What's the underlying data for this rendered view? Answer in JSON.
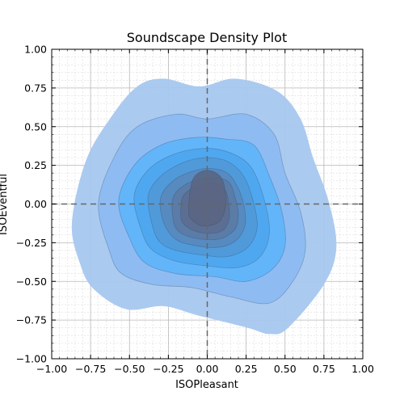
{
  "chart_data": {
    "type": "contour",
    "title": "Soundscape Density Plot",
    "xlabel": "ISOPleasant",
    "ylabel": "ISOEventful",
    "xlim": [
      -1,
      1
    ],
    "ylim": [
      -1,
      1
    ],
    "xticks": [
      -1.0,
      -0.75,
      -0.5,
      -0.25,
      0.0,
      0.25,
      0.5,
      0.75,
      1.0
    ],
    "yticks": [
      -1.0,
      -0.75,
      -0.5,
      -0.25,
      0.0,
      0.25,
      0.5,
      0.75,
      1.0
    ],
    "xtick_labels": [
      "−1.00",
      "−0.75",
      "−0.50",
      "−0.25",
      "0.00",
      "0.25",
      "0.50",
      "0.75",
      "1.00"
    ],
    "ytick_labels": [
      "−1.00",
      "−0.75",
      "−0.50",
      "−0.25",
      "0.00",
      "0.25",
      "0.50",
      "0.75",
      "1.00"
    ],
    "grid": true,
    "minor_grid": true,
    "reference_lines": {
      "x": 0,
      "y": 0,
      "style": "dashed",
      "color": "#666666"
    },
    "colors": {
      "level_outer": "#a8c8f0",
      "level_mid": "#4aaeff",
      "level_inner": "#55607a",
      "contour_line": "#2d4a70"
    },
    "density_levels": [
      {
        "level": 1,
        "color": "#a7c7ef",
        "boundary": [
          [
            -0.82,
            -0.38
          ],
          [
            -0.87,
            -0.12
          ],
          [
            -0.78,
            0.28
          ],
          [
            -0.62,
            0.56
          ],
          [
            -0.45,
            0.76
          ],
          [
            -0.28,
            0.81
          ],
          [
            -0.05,
            0.76
          ],
          [
            0.18,
            0.81
          ],
          [
            0.45,
            0.73
          ],
          [
            0.6,
            0.55
          ],
          [
            0.68,
            0.3
          ],
          [
            0.78,
            0.02
          ],
          [
            0.83,
            -0.28
          ],
          [
            0.75,
            -0.52
          ],
          [
            0.52,
            -0.8
          ],
          [
            0.4,
            -0.84
          ],
          [
            0.26,
            -0.8
          ],
          [
            -0.06,
            -0.72
          ],
          [
            -0.28,
            -0.66
          ],
          [
            -0.52,
            -0.68
          ],
          [
            -0.73,
            -0.55
          ]
        ]
      },
      {
        "level": 2,
        "color": "#8bbaf2",
        "boundary": [
          [
            -0.63,
            -0.3
          ],
          [
            -0.7,
            0.0
          ],
          [
            -0.6,
            0.3
          ],
          [
            -0.45,
            0.5
          ],
          [
            -0.2,
            0.58
          ],
          [
            0.0,
            0.55
          ],
          [
            0.25,
            0.58
          ],
          [
            0.43,
            0.45
          ],
          [
            0.5,
            0.2
          ],
          [
            0.6,
            -0.05
          ],
          [
            0.63,
            -0.3
          ],
          [
            0.55,
            -0.5
          ],
          [
            0.4,
            -0.64
          ],
          [
            0.15,
            -0.6
          ],
          [
            -0.1,
            -0.54
          ],
          [
            -0.35,
            -0.52
          ],
          [
            -0.55,
            -0.45
          ]
        ]
      },
      {
        "level": 3,
        "color": "#5eb4fb",
        "boundary": [
          [
            -0.5,
            -0.22
          ],
          [
            -0.57,
            0.02
          ],
          [
            -0.47,
            0.25
          ],
          [
            -0.3,
            0.38
          ],
          [
            -0.08,
            0.43
          ],
          [
            0.12,
            0.42
          ],
          [
            0.3,
            0.38
          ],
          [
            0.4,
            0.18
          ],
          [
            0.48,
            -0.05
          ],
          [
            0.5,
            -0.27
          ],
          [
            0.42,
            -0.42
          ],
          [
            0.25,
            -0.5
          ],
          [
            0.05,
            -0.47
          ],
          [
            -0.2,
            -0.45
          ],
          [
            -0.4,
            -0.38
          ]
        ]
      },
      {
        "level": 4,
        "color": "#4ca6ed",
        "boundary": [
          [
            -0.42,
            -0.18
          ],
          [
            -0.47,
            0.05
          ],
          [
            -0.38,
            0.22
          ],
          [
            -0.22,
            0.32
          ],
          [
            -0.02,
            0.36
          ],
          [
            0.15,
            0.33
          ],
          [
            0.28,
            0.24
          ],
          [
            0.36,
            0.05
          ],
          [
            0.4,
            -0.18
          ],
          [
            0.34,
            -0.34
          ],
          [
            0.2,
            -0.41
          ],
          [
            0.0,
            -0.4
          ],
          [
            -0.2,
            -0.37
          ],
          [
            -0.35,
            -0.3
          ]
        ]
      },
      {
        "level": 5,
        "color": "#5198d6",
        "boundary": [
          [
            -0.35,
            -0.15
          ],
          [
            -0.38,
            0.05
          ],
          [
            -0.3,
            0.18
          ],
          [
            -0.15,
            0.27
          ],
          [
            0.0,
            0.3
          ],
          [
            0.14,
            0.27
          ],
          [
            0.24,
            0.17
          ],
          [
            0.3,
            0.0
          ],
          [
            0.32,
            -0.16
          ],
          [
            0.26,
            -0.28
          ],
          [
            0.13,
            -0.34
          ],
          [
            -0.03,
            -0.33
          ],
          [
            -0.2,
            -0.3
          ],
          [
            -0.3,
            -0.25
          ]
        ]
      },
      {
        "level": 6,
        "color": "#5888bb",
        "boundary": [
          [
            -0.28,
            -0.12
          ],
          [
            -0.3,
            0.04
          ],
          [
            -0.22,
            0.15
          ],
          [
            -0.1,
            0.21
          ],
          [
            0.02,
            0.23
          ],
          [
            0.13,
            0.2
          ],
          [
            0.2,
            0.1
          ],
          [
            0.24,
            -0.03
          ],
          [
            0.24,
            -0.15
          ],
          [
            0.18,
            -0.24
          ],
          [
            0.07,
            -0.28
          ],
          [
            -0.07,
            -0.27
          ],
          [
            -0.2,
            -0.23
          ]
        ]
      },
      {
        "level": 7,
        "color": "#5b7aa4",
        "boundary": [
          [
            -0.22,
            -0.1
          ],
          [
            -0.22,
            0.04
          ],
          [
            -0.15,
            0.12
          ],
          [
            -0.05,
            0.16
          ],
          [
            0.05,
            0.17
          ],
          [
            0.14,
            0.14
          ],
          [
            0.18,
            0.04
          ],
          [
            0.2,
            -0.07
          ],
          [
            0.18,
            -0.16
          ],
          [
            0.1,
            -0.22
          ],
          [
            0.0,
            -0.23
          ],
          [
            -0.12,
            -0.21
          ],
          [
            -0.19,
            -0.17
          ]
        ]
      },
      {
        "level": 8,
        "color": "#5c6e90",
        "boundary": [
          [
            -0.17,
            -0.08
          ],
          [
            -0.16,
            0.04
          ],
          [
            -0.1,
            0.1
          ],
          [
            -0.02,
            0.13
          ],
          [
            0.06,
            0.13
          ],
          [
            0.12,
            0.08
          ],
          [
            0.14,
            -0.02
          ],
          [
            0.14,
            -0.1
          ],
          [
            0.1,
            -0.17
          ],
          [
            0.01,
            -0.19
          ],
          [
            -0.09,
            -0.17
          ],
          [
            -0.15,
            -0.13
          ]
        ]
      },
      {
        "level": 9,
        "color": "#5a6582",
        "boundary": [
          [
            -0.12,
            -0.05
          ],
          [
            -0.1,
            0.14
          ],
          [
            -0.04,
            0.21
          ],
          [
            0.04,
            0.21
          ],
          [
            0.1,
            0.15
          ],
          [
            0.12,
            0.02
          ],
          [
            0.1,
            -0.08
          ],
          [
            0.05,
            -0.13
          ],
          [
            -0.04,
            -0.14
          ],
          [
            -0.1,
            -0.1
          ]
        ]
      }
    ]
  }
}
